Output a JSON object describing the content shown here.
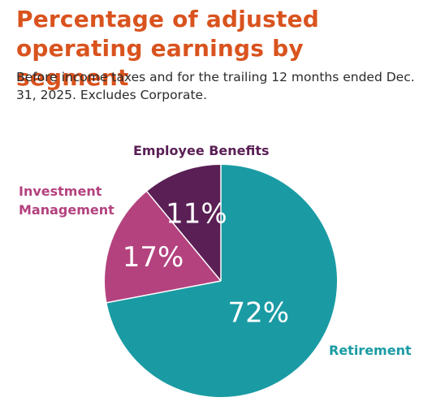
{
  "header": {
    "title": "Percentage of adjusted operating earnings by segment",
    "subtitle": "Before income taxes and for the trailing 12 months ended Dec. 31, 2025. Excludes Corporate."
  },
  "chart_data": {
    "type": "pie",
    "title": "Percentage of adjusted operating earnings by segment",
    "subtitle": "Before income taxes and for the trailing 12 months ended Dec. 31, 2025. Excludes Corporate.",
    "start": "12 o'clock, clockwise",
    "slices": [
      {
        "label": "Retirement",
        "value": 72,
        "display": "72%",
        "color": "#1a9ba4",
        "label_color": "#1a9ba4"
      },
      {
        "label": "Investment Management",
        "label_lines": [
          "Investment",
          "Management"
        ],
        "value": 17,
        "display": "17%",
        "color": "#b4427f",
        "label_color": "#b4427f"
      },
      {
        "label": "Employee Benefits",
        "value": 11,
        "display": "11%",
        "color": "#5a1f55",
        "label_color": "#5a1f55"
      }
    ]
  }
}
